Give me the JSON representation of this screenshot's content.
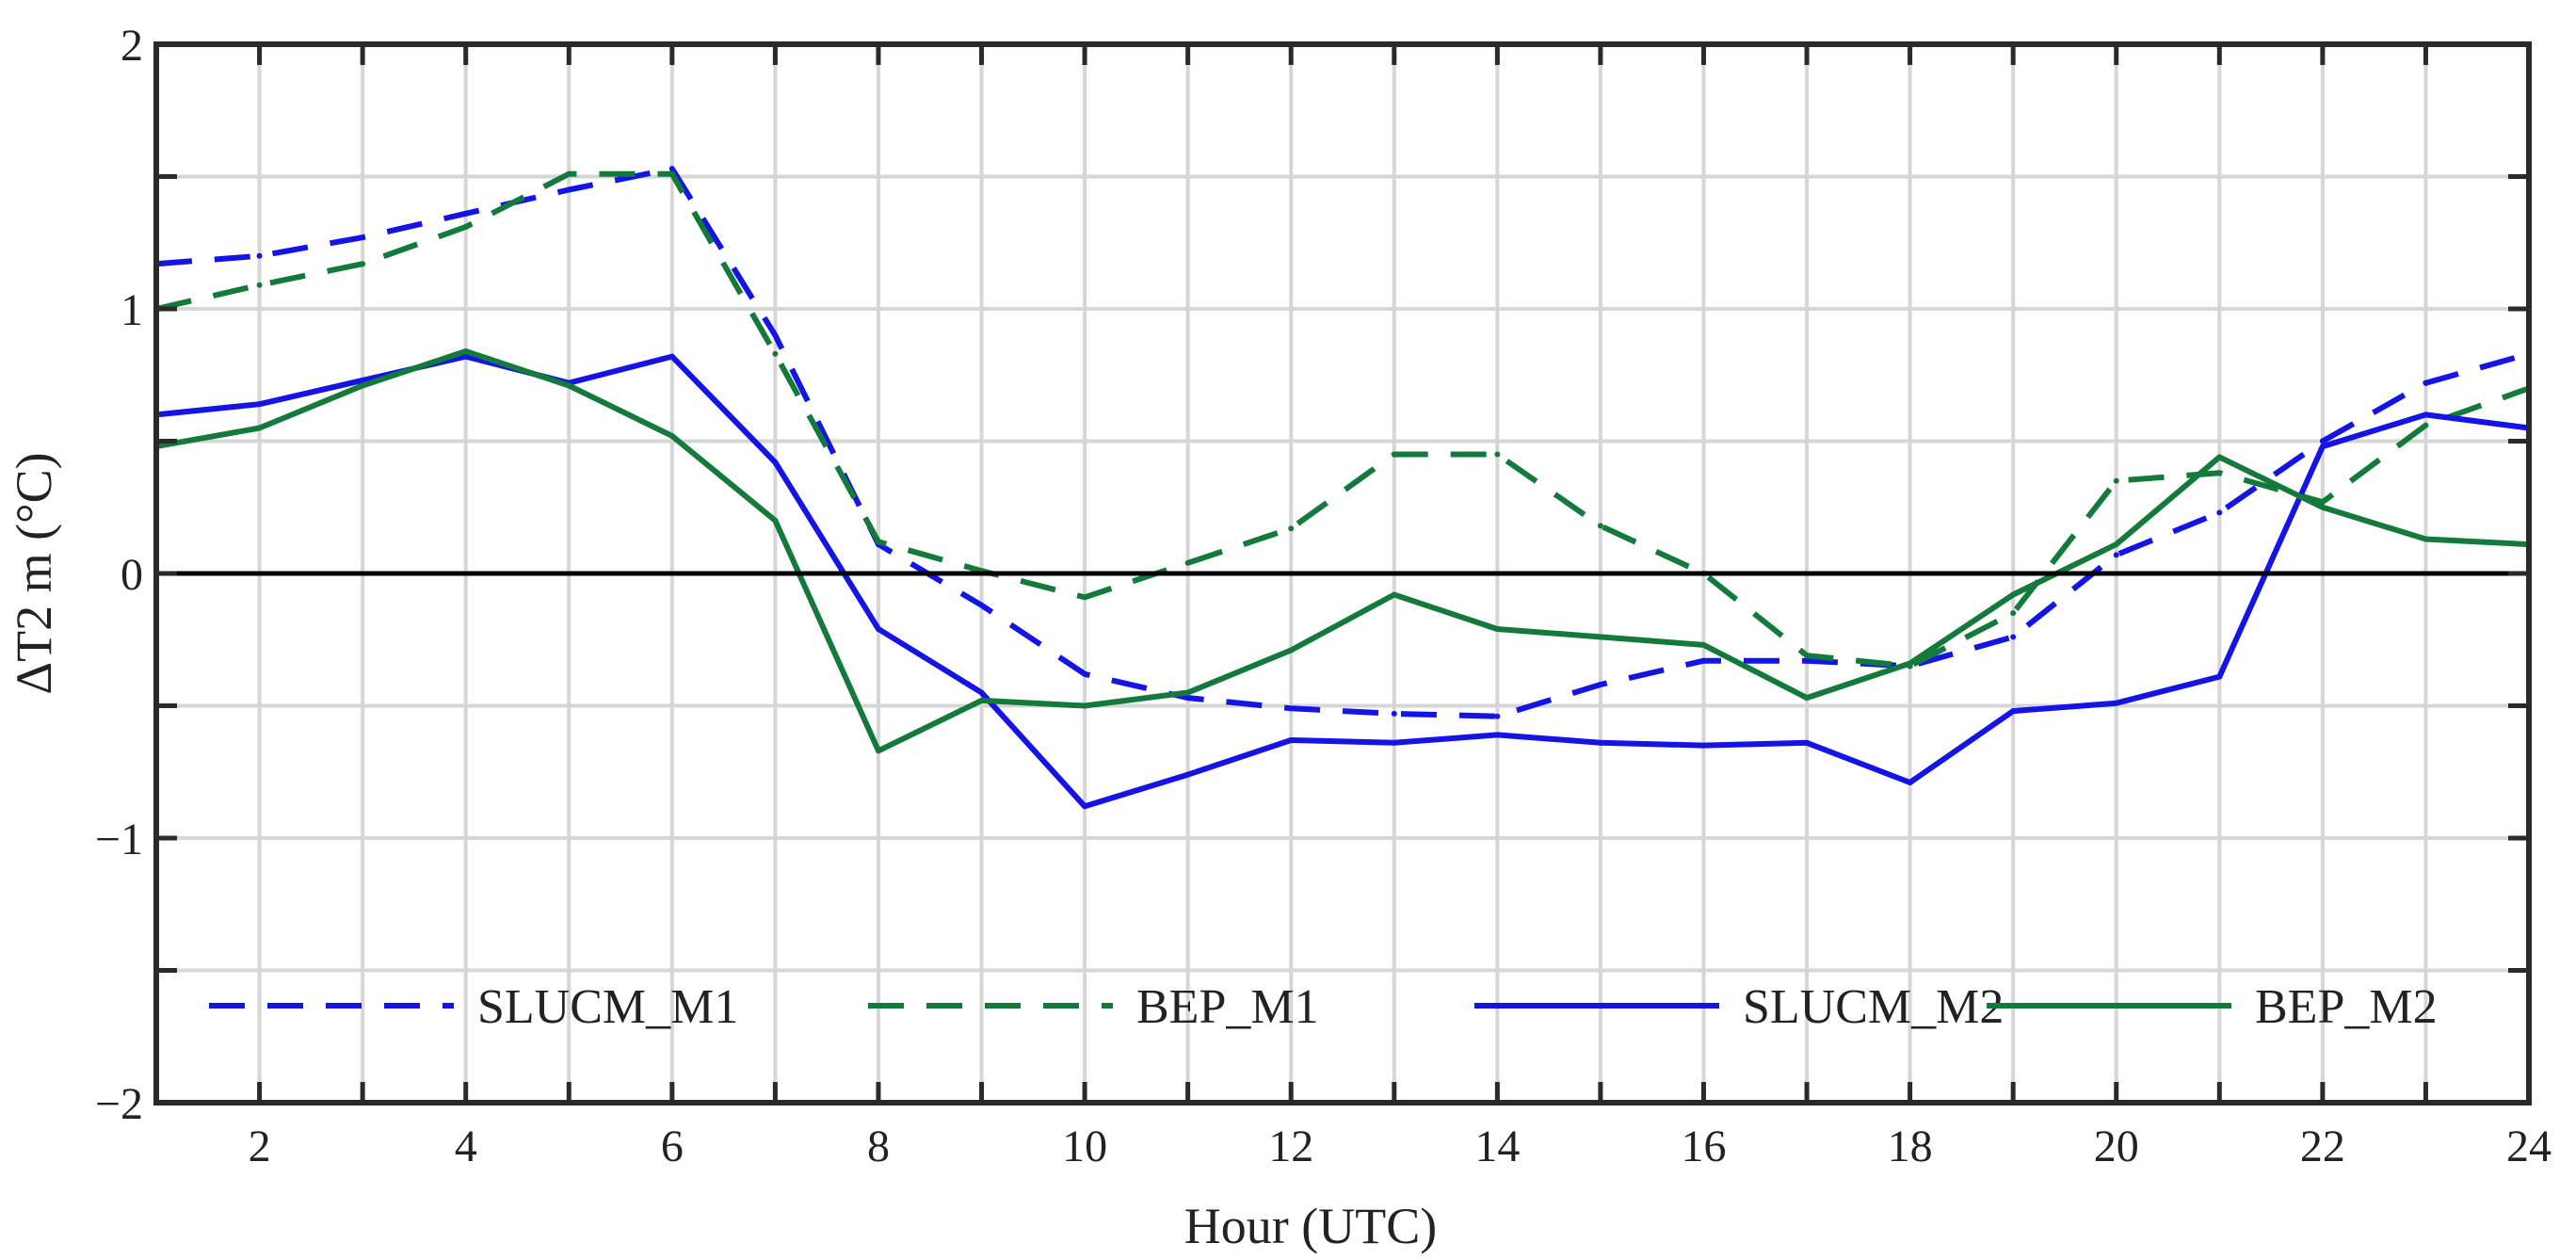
{
  "chart_data": {
    "type": "line",
    "xlabel": "Hour (UTC)",
    "ylabel": "ΔT2 m (°C)",
    "xlim": [
      1,
      24
    ],
    "ylim": [
      -2,
      2
    ],
    "xticks": [
      2,
      4,
      6,
      8,
      10,
      12,
      14,
      16,
      18,
      20,
      22,
      24
    ],
    "xtick_labels": [
      "2",
      "4",
      "6",
      "8",
      "10",
      "12",
      "14",
      "16",
      "18",
      "20",
      "22",
      "24"
    ],
    "yticks": [
      -2,
      -1,
      0,
      1,
      2
    ],
    "ytick_labels": [
      "−2",
      "−1",
      "0",
      "1",
      "2"
    ],
    "grid": true,
    "grid_x": [
      1,
      2,
      3,
      4,
      5,
      6,
      7,
      8,
      9,
      10,
      11,
      12,
      13,
      14,
      15,
      16,
      17,
      18,
      19,
      20,
      21,
      22,
      23,
      24
    ],
    "grid_y": [
      -2,
      -1.5,
      -1,
      -0.5,
      0,
      0.5,
      1,
      1.5,
      2
    ],
    "reference_line": 0,
    "legend_position": "bottom",
    "x": [
      1,
      2,
      3,
      4,
      5,
      6,
      7,
      8,
      9,
      10,
      11,
      12,
      13,
      14,
      15,
      16,
      17,
      18,
      19,
      20,
      21,
      22,
      23,
      24
    ],
    "series": [
      {
        "name": "SLUCM_M1",
        "color": "#1414e6",
        "style": "dashed",
        "values": [
          1.17,
          1.2,
          1.27,
          1.36,
          1.45,
          1.53,
          0.9,
          0.11,
          -0.12,
          -0.38,
          -0.47,
          -0.51,
          -0.53,
          -0.54,
          -0.42,
          -0.33,
          -0.33,
          -0.35,
          -0.24,
          0.07,
          0.23,
          0.5,
          0.72,
          0.83
        ]
      },
      {
        "name": "BEP_M1",
        "color": "#147a3c",
        "style": "dashed",
        "values": [
          1.0,
          1.09,
          1.17,
          1.31,
          1.51,
          1.51,
          0.83,
          0.12,
          0.01,
          -0.09,
          0.04,
          0.17,
          0.45,
          0.45,
          0.18,
          0.0,
          -0.31,
          -0.35,
          -0.15,
          0.35,
          0.38,
          0.27,
          0.56,
          0.7
        ]
      },
      {
        "name": "SLUCM_M2",
        "color": "#1414e6",
        "style": "solid",
        "values": [
          0.6,
          0.64,
          0.73,
          0.82,
          0.72,
          0.82,
          0.42,
          -0.21,
          -0.45,
          -0.88,
          -0.76,
          -0.63,
          -0.64,
          -0.61,
          -0.64,
          -0.65,
          -0.64,
          -0.79,
          -0.52,
          -0.49,
          -0.39,
          0.48,
          0.6,
          0.55
        ]
      },
      {
        "name": "BEP_M2",
        "color": "#147a3c",
        "style": "solid",
        "values": [
          0.48,
          0.55,
          0.71,
          0.84,
          0.71,
          0.52,
          0.2,
          -0.67,
          -0.48,
          -0.5,
          -0.45,
          -0.29,
          -0.08,
          -0.21,
          -0.24,
          -0.27,
          -0.47,
          -0.34,
          -0.08,
          0.11,
          0.44,
          0.25,
          0.13,
          0.11
        ]
      }
    ]
  }
}
